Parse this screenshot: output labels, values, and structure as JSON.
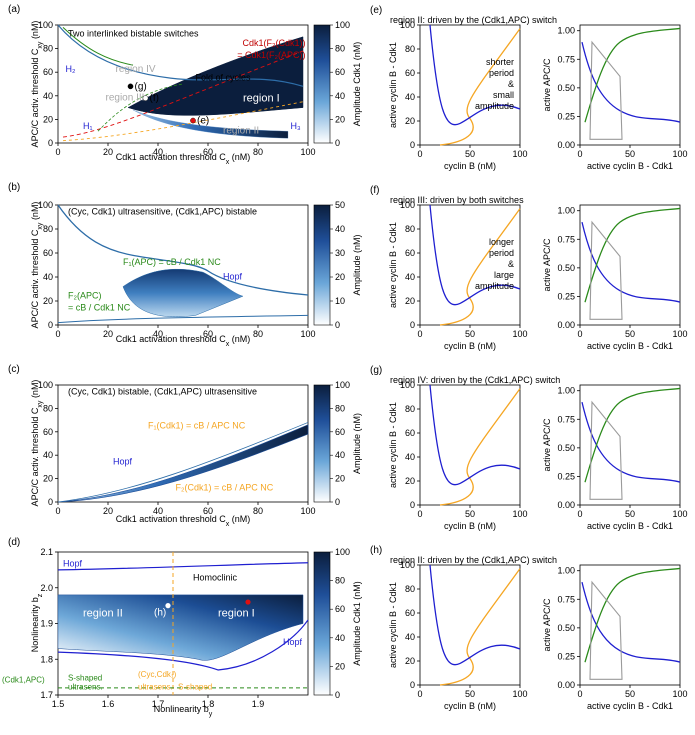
{
  "panels": {
    "a": {
      "letter": "(a)",
      "title": "Two interlinked bistable switches",
      "xlabel": "Cdk1 activation threshold C",
      "xsub": "x",
      "xunit": " (nM)",
      "ylabel": "APC/C activ. threshold C",
      "ysub": "xy",
      "yunit": " (nM)",
      "cbar_label": "Amplitude Cdk1 (nM)",
      "ann_red_1": "Cdk1(F₂(Cdk1))",
      "ann_red_2": "= Cdk1(F₂(APC))",
      "ann_fold": "Fold of cycles",
      "ann_region1": "region I",
      "ann_region2": "region II",
      "ann_region3": "region III",
      "ann_region4": "region IV",
      "pt_g": "(g)",
      "pt_f": "(f)",
      "pt_e": "(e)",
      "h1": "H₁",
      "h2": "H₂",
      "h3": "H₃"
    },
    "b": {
      "letter": "(b)",
      "title": "(Cyc, Cdk1) ultrasensitive, (Cdk1,APC) bistable",
      "xlabel": "Cdk1 activation threshold C",
      "xsub": "x",
      "xunit": " (nM)",
      "ylabel": "APC/C activ. threshold C",
      "ysub": "xy",
      "yunit": " (nM)",
      "cbar_label": "Amplitude (nM)",
      "ann1": "F₁(APC) = cB / Cdk1 NC",
      "ann2a": "F₂(APC)",
      "ann2b": "= cB / Cdk1 NC",
      "hopf": "Hopf"
    },
    "c": {
      "letter": "(c)",
      "title": "(Cyc, Cdk1) bistable, (Cdk1,APC) ultrasensitive",
      "xlabel": "Cdk1 activation threshold C",
      "xsub": "x",
      "xunit": " (nM)",
      "ylabel": "APC/C activ. threshold C",
      "ysub": "xy",
      "yunit": " (nM)",
      "cbar_label": "Amplitude (nM)",
      "ann1": "F₁(Cdk1) = cB / APC NC",
      "ann2": "F₂(Cdk1) = cB / APC NC",
      "hopf": "Hopf"
    },
    "d": {
      "letter": "(d)",
      "xlabel": "Nonlinearity b",
      "xsub": "y",
      "ylabel": "Nonlinearity b",
      "ysub": "z",
      "cbar_label": "Amplitude Cdk1 (nM)",
      "hopf_top": "Hopf",
      "hopf_right": "Hopf",
      "homoclinic": "Homoclinic",
      "region1": "region I",
      "region2": "region II",
      "pt_h": "(h)",
      "lbl_cdk1apc": "(Cdk1,APC)",
      "lbl_sshaped1": "S-shaped",
      "lbl_ultrasens1": "ultrasens.",
      "lbl_cyccdk1": "(Cyc,Cdk₁)",
      "lbl_ultrasens2": "ultrasens.",
      "lbl_sshaped2": "S-shaped"
    },
    "e": {
      "letter": "(e)",
      "title": "region II: driven by the (Cdk1,APC) switch",
      "left_xlabel": "cyclin B (nM)",
      "left_ylabel": "active cyclin B - Cdk1",
      "right_xlabel": "active cyclin B - Cdk1",
      "right_ylabel": "active APC/C",
      "note": [
        "shorter",
        "period",
        "&",
        "small",
        "amplitude"
      ]
    },
    "f": {
      "letter": "(f)",
      "title": "region III: driven by both switches",
      "left_xlabel": "cyclin B (nM)",
      "left_ylabel": "active cyclin B - Cdk1",
      "right_xlabel": "active cyclin B - Cdk1",
      "right_ylabel": "active APC/C",
      "note": [
        "longer",
        "period",
        "&",
        "large",
        "amplitude"
      ]
    },
    "g": {
      "letter": "(g)",
      "title": "region IV: driven by the (Cdk1,APC) switch",
      "left_xlabel": "cyclin B (nM)",
      "left_ylabel": "active cyclin B - Cdk1",
      "right_xlabel": "active cyclin B - Cdk1",
      "right_ylabel": "active APC/C"
    },
    "h": {
      "letter": "(h)",
      "title": "region II: driven by the (Cdk1,APC) switch",
      "left_xlabel": "cyclin B (nM)",
      "left_ylabel": "active cyclin B - Cdk1",
      "right_xlabel": "active cyclin B - Cdk1",
      "right_ylabel": "active APC/C"
    }
  },
  "colors": {
    "orange": "#f5a623",
    "blue": "#1f1fd0",
    "green": "#2a8a1a",
    "gray": "#9a9a9a",
    "dark": "#0b1e3d",
    "red": "#e01010",
    "darkred": "#c00000"
  },
  "chart_data": [
    {
      "panel": "a",
      "type": "heatmap",
      "x_ticks": [
        "0",
        "20",
        "40",
        "60",
        "80",
        "100"
      ],
      "y_ticks": [
        "0",
        "20",
        "40",
        "60",
        "80",
        "100"
      ],
      "xlim": [
        0,
        100
      ],
      "ylim": [
        0,
        100
      ],
      "colorbar": {
        "ticks": [
          "0",
          "20",
          "40",
          "60",
          "80",
          "100"
        ],
        "range": [
          0,
          100
        ]
      },
      "points": [
        {
          "label": "(g)",
          "x": 29,
          "y": 48
        },
        {
          "label": "(f)",
          "x": 35,
          "y": 38
        },
        {
          "label": "(e)",
          "x": 54,
          "y": 19
        }
      ]
    },
    {
      "panel": "b",
      "type": "heatmap",
      "x_ticks": [
        "0",
        "20",
        "40",
        "60",
        "80",
        "100"
      ],
      "y_ticks": [
        "0",
        "20",
        "40",
        "60",
        "80",
        "100"
      ],
      "xlim": [
        0,
        100
      ],
      "ylim": [
        0,
        100
      ],
      "colorbar": {
        "ticks": [
          "0",
          "10",
          "20",
          "30",
          "40",
          "50"
        ],
        "range": [
          0,
          50
        ]
      }
    },
    {
      "panel": "c",
      "type": "heatmap",
      "x_ticks": [
        "0",
        "20",
        "40",
        "60",
        "80",
        "100"
      ],
      "y_ticks": [
        "0",
        "20",
        "40",
        "60",
        "80",
        "100"
      ],
      "xlim": [
        0,
        100
      ],
      "ylim": [
        0,
        100
      ],
      "colorbar": {
        "ticks": [
          "0",
          "20",
          "40",
          "60",
          "80",
          "100"
        ],
        "range": [
          0,
          100
        ]
      }
    },
    {
      "panel": "d",
      "type": "heatmap",
      "x_ticks": [
        "1.5",
        "1.6",
        "1.7",
        "1.8",
        "1.9"
      ],
      "y_ticks": [
        "1.7",
        "1.8",
        "1.9",
        "2.0",
        "2.1"
      ],
      "xlim": [
        1.5,
        2.0
      ],
      "ylim": [
        1.7,
        2.1
      ],
      "colorbar": {
        "ticks": [
          "0",
          "20",
          "40",
          "60",
          "80",
          "100"
        ],
        "range": [
          0,
          100
        ]
      },
      "points": [
        {
          "label": "(h)",
          "x": 1.72,
          "y": 1.95
        },
        {
          "label": "",
          "x": 1.88,
          "y": 1.96
        }
      ]
    },
    {
      "panel": "e-left",
      "type": "line",
      "x_ticks": [
        "0",
        "50",
        "100"
      ],
      "y_ticks": [
        "0",
        "20",
        "40",
        "60",
        "80",
        "100"
      ],
      "xlim": [
        0,
        100
      ],
      "ylim": [
        0,
        100
      ]
    },
    {
      "panel": "e-right",
      "type": "line",
      "x_ticks": [
        "0",
        "50",
        "100"
      ],
      "y_ticks": [
        "0.00",
        "0.25",
        "0.50",
        "0.75",
        "1.00"
      ],
      "xlim": [
        0,
        100
      ],
      "ylim": [
        0,
        1.05
      ]
    },
    {
      "panel": "f-left",
      "type": "line",
      "x_ticks": [
        "0",
        "50",
        "100"
      ],
      "y_ticks": [
        "0",
        "20",
        "40",
        "60",
        "80",
        "100"
      ],
      "xlim": [
        0,
        100
      ],
      "ylim": [
        0,
        100
      ]
    },
    {
      "panel": "f-right",
      "type": "line",
      "x_ticks": [
        "0",
        "50",
        "100"
      ],
      "y_ticks": [
        "0.00",
        "0.25",
        "0.50",
        "0.75",
        "1.00"
      ],
      "xlim": [
        0,
        100
      ],
      "ylim": [
        0,
        1.05
      ]
    },
    {
      "panel": "g-left",
      "type": "line",
      "x_ticks": [
        "0",
        "50",
        "100"
      ],
      "y_ticks": [
        "0",
        "20",
        "40",
        "60",
        "80",
        "100"
      ],
      "xlim": [
        0,
        100
      ],
      "ylim": [
        0,
        100
      ]
    },
    {
      "panel": "g-right",
      "type": "line",
      "x_ticks": [
        "0",
        "50",
        "100"
      ],
      "y_ticks": [
        "0.00",
        "0.25",
        "0.50",
        "0.75",
        "1.00"
      ],
      "xlim": [
        0,
        100
      ],
      "ylim": [
        0,
        1.05
      ]
    },
    {
      "panel": "h-left",
      "type": "line",
      "x_ticks": [
        "0",
        "50",
        "100"
      ],
      "y_ticks": [
        "0",
        "20",
        "40",
        "60",
        "80",
        "100"
      ],
      "xlim": [
        0,
        100
      ],
      "ylim": [
        0,
        100
      ]
    },
    {
      "panel": "h-right",
      "type": "line",
      "x_ticks": [
        "0",
        "50",
        "100"
      ],
      "y_ticks": [
        "0.00",
        "0.25",
        "0.50",
        "0.75",
        "1.00"
      ],
      "xlim": [
        0,
        100
      ],
      "ylim": [
        0,
        1.05
      ]
    }
  ]
}
